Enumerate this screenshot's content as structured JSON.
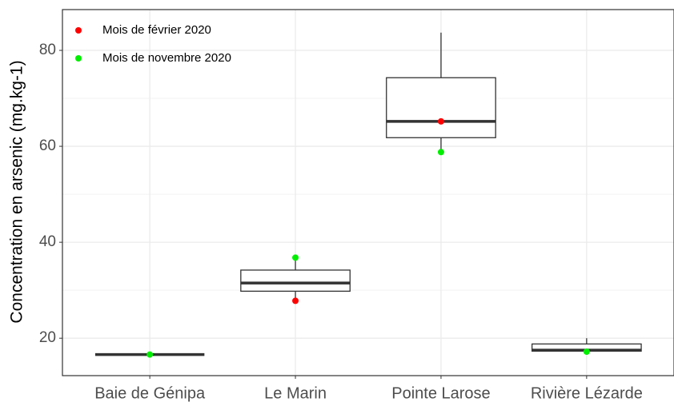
{
  "chart_data": {
    "type": "box",
    "y_label": "Concentration en arsenic (mg.kg-1)",
    "categories": [
      "Baie de Génipa",
      "Le Marin",
      "Pointe Larose",
      "Rivière Lézarde"
    ],
    "boxes": [
      {
        "min": 16.6,
        "q1": 16.6,
        "median": 16.6,
        "q3": 16.6,
        "max": 16.6
      },
      {
        "min": 27.8,
        "q1": 29.8,
        "median": 31.5,
        "q3": 34.2,
        "max": 36.8
      },
      {
        "min": 58.8,
        "q1": 61.8,
        "median": 65.2,
        "q3": 74.3,
        "max": 83.7
      },
      {
        "min": 17.2,
        "q1": 17.3,
        "median": 17.5,
        "q3": 18.8,
        "max": 20
      }
    ],
    "box_color": "#333333",
    "series": [
      {
        "name": "Mois de février 2020",
        "color": "#ff0000",
        "values": [
          null,
          27.8,
          65.2,
          null
        ]
      },
      {
        "name": "Mois de novembre 2020",
        "color": "#00ee00",
        "values": [
          16.6,
          36.8,
          58.8,
          17.2
        ]
      }
    ],
    "ylim": [
      12.2,
      88.5
    ],
    "yticks": [
      20,
      40,
      60,
      80
    ],
    "grid": true,
    "legend": "top-left"
  }
}
